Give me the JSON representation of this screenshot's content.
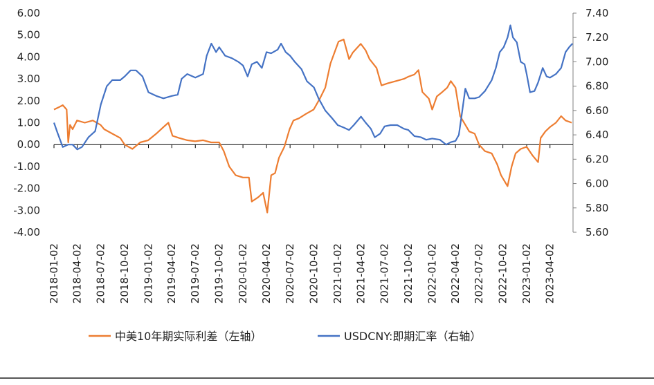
{
  "chart_data": {
    "type": "line",
    "title": "",
    "xlabel": "",
    "ylabel_left": "",
    "ylabel_right": "",
    "y_left_range": [
      -4.0,
      6.0
    ],
    "y_right_range": [
      5.6,
      7.4
    ],
    "y_left_ticks": [
      "6.00",
      "5.00",
      "4.00",
      "3.00",
      "2.00",
      "1.00",
      "0.00",
      "-1.00",
      "-2.00",
      "-3.00",
      "-4.00"
    ],
    "y_right_ticks": [
      "7.40",
      "7.20",
      "7.00",
      "6.80",
      "6.60",
      "6.40",
      "6.20",
      "6.00",
      "5.80",
      "5.60"
    ],
    "x_range": [
      "2018-01-02",
      "2023-06-30"
    ],
    "x_ticks": [
      "2018-01-02",
      "2018-04-02",
      "2018-07-02",
      "2018-10-02",
      "2019-01-02",
      "2019-04-02",
      "2019-07-02",
      "2019-10-02",
      "2020-01-02",
      "2020-04-02",
      "2020-07-02",
      "2020-10-02",
      "2021-01-02",
      "2021-04-02",
      "2021-07-02",
      "2021-10-02",
      "2022-01-02",
      "2022-04-02",
      "2022-07-02",
      "2022-10-02",
      "2023-01-02",
      "2023-04-02"
    ],
    "legend_position": "bottom",
    "grid": false,
    "series": [
      {
        "name": "中美10年期实际利差（左轴）",
        "axis": "left",
        "color": "#ED7D31",
        "points": [
          [
            "2018-01-02",
            1.6
          ],
          [
            "2018-01-20",
            1.7
          ],
          [
            "2018-02-05",
            1.8
          ],
          [
            "2018-02-20",
            1.6
          ],
          [
            "2018-02-26",
            0.1
          ],
          [
            "2018-03-05",
            0.9
          ],
          [
            "2018-03-15",
            0.7
          ],
          [
            "2018-04-01",
            1.1
          ],
          [
            "2018-05-01",
            1.0
          ],
          [
            "2018-06-01",
            1.1
          ],
          [
            "2018-07-01",
            0.9
          ],
          [
            "2018-07-15",
            0.7
          ],
          [
            "2018-08-15",
            0.5
          ],
          [
            "2018-09-15",
            0.3
          ],
          [
            "2018-10-02",
            0.0
          ],
          [
            "2018-11-01",
            -0.2
          ],
          [
            "2018-12-01",
            0.1
          ],
          [
            "2019-01-01",
            0.2
          ],
          [
            "2019-02-01",
            0.5
          ],
          [
            "2019-03-01",
            0.8
          ],
          [
            "2019-03-20",
            1.0
          ],
          [
            "2019-04-05",
            0.4
          ],
          [
            "2019-05-01",
            0.3
          ],
          [
            "2019-06-01",
            0.2
          ],
          [
            "2019-07-01",
            0.15
          ],
          [
            "2019-08-01",
            0.2
          ],
          [
            "2019-09-01",
            0.1
          ],
          [
            "2019-10-02",
            0.1
          ],
          [
            "2019-10-20",
            -0.3
          ],
          [
            "2019-11-10",
            -1.0
          ],
          [
            "2019-12-05",
            -1.4
          ],
          [
            "2020-01-02",
            -1.5
          ],
          [
            "2020-01-25",
            -1.5
          ],
          [
            "2020-02-05",
            -2.6
          ],
          [
            "2020-03-01",
            -2.4
          ],
          [
            "2020-03-20",
            -2.2
          ],
          [
            "2020-04-05",
            -3.1
          ],
          [
            "2020-04-20",
            -1.4
          ],
          [
            "2020-05-05",
            -1.3
          ],
          [
            "2020-05-20",
            -0.6
          ],
          [
            "2020-06-10",
            -0.1
          ],
          [
            "2020-06-30",
            0.7
          ],
          [
            "2020-07-15",
            1.1
          ],
          [
            "2020-08-05",
            1.2
          ],
          [
            "2020-09-01",
            1.4
          ],
          [
            "2020-10-01",
            1.6
          ],
          [
            "2020-10-25",
            2.1
          ],
          [
            "2020-11-15",
            2.6
          ],
          [
            "2020-12-05",
            3.7
          ],
          [
            "2021-01-05",
            4.7
          ],
          [
            "2021-01-25",
            4.8
          ],
          [
            "2021-02-15",
            3.9
          ],
          [
            "2021-03-01",
            4.2
          ],
          [
            "2021-04-01",
            4.6
          ],
          [
            "2021-04-20",
            4.3
          ],
          [
            "2021-05-05",
            3.9
          ],
          [
            "2021-06-01",
            3.5
          ],
          [
            "2021-06-20",
            2.7
          ],
          [
            "2021-07-15",
            2.8
          ],
          [
            "2021-08-15",
            2.9
          ],
          [
            "2021-09-15",
            3.0
          ],
          [
            "2021-10-02",
            3.1
          ],
          [
            "2021-10-25",
            3.2
          ],
          [
            "2021-11-10",
            3.4
          ],
          [
            "2021-11-25",
            2.4
          ],
          [
            "2021-12-20",
            2.1
          ],
          [
            "2022-01-02",
            1.6
          ],
          [
            "2022-01-20",
            2.2
          ],
          [
            "2022-02-10",
            2.4
          ],
          [
            "2022-03-01",
            2.6
          ],
          [
            "2022-03-15",
            2.9
          ],
          [
            "2022-04-02",
            2.6
          ],
          [
            "2022-04-20",
            1.3
          ],
          [
            "2022-05-10",
            0.9
          ],
          [
            "2022-05-25",
            0.6
          ],
          [
            "2022-06-15",
            0.5
          ],
          [
            "2022-07-02",
            0.0
          ],
          [
            "2022-07-25",
            -0.3
          ],
          [
            "2022-08-20",
            -0.4
          ],
          [
            "2022-09-10",
            -0.9
          ],
          [
            "2022-09-25",
            -1.4
          ],
          [
            "2022-10-10",
            -1.7
          ],
          [
            "2022-10-20",
            -1.9
          ],
          [
            "2022-11-05",
            -1.0
          ],
          [
            "2022-11-20",
            -0.4
          ],
          [
            "2022-12-10",
            -0.2
          ],
          [
            "2023-01-02",
            -0.1
          ],
          [
            "2023-01-25",
            -0.5
          ],
          [
            "2023-02-15",
            -0.8
          ],
          [
            "2023-02-25",
            0.3
          ],
          [
            "2023-03-15",
            0.6
          ],
          [
            "2023-04-02",
            0.8
          ],
          [
            "2023-04-25",
            1.0
          ],
          [
            "2023-05-15",
            1.3
          ],
          [
            "2023-06-01",
            1.1
          ],
          [
            "2023-06-25",
            1.0
          ]
        ]
      },
      {
        "name": "USDCNY:即期汇率（右轴）",
        "axis": "right",
        "color": "#4472C4",
        "points": [
          [
            "2018-01-02",
            6.5
          ],
          [
            "2018-01-15",
            6.42
          ],
          [
            "2018-02-05",
            6.3
          ],
          [
            "2018-02-25",
            6.32
          ],
          [
            "2018-03-15",
            6.32
          ],
          [
            "2018-04-02",
            6.28
          ],
          [
            "2018-04-20",
            6.3
          ],
          [
            "2018-05-15",
            6.38
          ],
          [
            "2018-06-10",
            6.43
          ],
          [
            "2018-07-02",
            6.65
          ],
          [
            "2018-07-25",
            6.8
          ],
          [
            "2018-08-15",
            6.85
          ],
          [
            "2018-09-15",
            6.85
          ],
          [
            "2018-10-02",
            6.88
          ],
          [
            "2018-10-25",
            6.93
          ],
          [
            "2018-11-15",
            6.93
          ],
          [
            "2018-12-10",
            6.88
          ],
          [
            "2019-01-02",
            6.75
          ],
          [
            "2019-02-01",
            6.72
          ],
          [
            "2019-03-01",
            6.7
          ],
          [
            "2019-04-02",
            6.72
          ],
          [
            "2019-04-25",
            6.73
          ],
          [
            "2019-05-10",
            6.86
          ],
          [
            "2019-06-01",
            6.9
          ],
          [
            "2019-07-02",
            6.87
          ],
          [
            "2019-08-01",
            6.9
          ],
          [
            "2019-08-15",
            7.05
          ],
          [
            "2019-09-02",
            7.15
          ],
          [
            "2019-09-20",
            7.08
          ],
          [
            "2019-10-02",
            7.12
          ],
          [
            "2019-10-25",
            7.05
          ],
          [
            "2019-11-20",
            7.03
          ],
          [
            "2019-12-15",
            7.0
          ],
          [
            "2020-01-02",
            6.97
          ],
          [
            "2020-01-20",
            6.88
          ],
          [
            "2020-02-05",
            6.98
          ],
          [
            "2020-02-25",
            7.0
          ],
          [
            "2020-03-15",
            6.95
          ],
          [
            "2020-04-02",
            7.08
          ],
          [
            "2020-04-20",
            7.07
          ],
          [
            "2020-05-15",
            7.1
          ],
          [
            "2020-05-28",
            7.15
          ],
          [
            "2020-06-15",
            7.08
          ],
          [
            "2020-07-02",
            7.05
          ],
          [
            "2020-07-20",
            7.0
          ],
          [
            "2020-08-15",
            6.94
          ],
          [
            "2020-09-05",
            6.84
          ],
          [
            "2020-10-02",
            6.79
          ],
          [
            "2020-10-20",
            6.7
          ],
          [
            "2020-11-15",
            6.6
          ],
          [
            "2020-12-10",
            6.54
          ],
          [
            "2021-01-02",
            6.48
          ],
          [
            "2021-01-25",
            6.46
          ],
          [
            "2021-02-15",
            6.44
          ],
          [
            "2021-03-05",
            6.48
          ],
          [
            "2021-04-02",
            6.55
          ],
          [
            "2021-04-20",
            6.5
          ],
          [
            "2021-05-10",
            6.45
          ],
          [
            "2021-05-25",
            6.38
          ],
          [
            "2021-06-15",
            6.41
          ],
          [
            "2021-07-02",
            6.47
          ],
          [
            "2021-07-25",
            6.48
          ],
          [
            "2021-08-20",
            6.48
          ],
          [
            "2021-09-15",
            6.45
          ],
          [
            "2021-10-02",
            6.44
          ],
          [
            "2021-10-25",
            6.39
          ],
          [
            "2021-11-20",
            6.38
          ],
          [
            "2021-12-10",
            6.36
          ],
          [
            "2022-01-02",
            6.37
          ],
          [
            "2022-02-01",
            6.36
          ],
          [
            "2022-02-25",
            6.32
          ],
          [
            "2022-03-15",
            6.34
          ],
          [
            "2022-04-02",
            6.35
          ],
          [
            "2022-04-15",
            6.4
          ],
          [
            "2022-04-25",
            6.55
          ],
          [
            "2022-05-10",
            6.78
          ],
          [
            "2022-05-25",
            6.7
          ],
          [
            "2022-06-15",
            6.7
          ],
          [
            "2022-07-02",
            6.71
          ],
          [
            "2022-07-25",
            6.76
          ],
          [
            "2022-08-20",
            6.85
          ],
          [
            "2022-09-05",
            6.95
          ],
          [
            "2022-09-20",
            7.08
          ],
          [
            "2022-10-05",
            7.12
          ],
          [
            "2022-10-20",
            7.2
          ],
          [
            "2022-10-31",
            7.3
          ],
          [
            "2022-11-10",
            7.2
          ],
          [
            "2022-11-25",
            7.16
          ],
          [
            "2022-12-10",
            7.0
          ],
          [
            "2022-12-25",
            6.98
          ],
          [
            "2023-01-02",
            6.9
          ],
          [
            "2023-01-15",
            6.75
          ],
          [
            "2023-02-01",
            6.76
          ],
          [
            "2023-02-15",
            6.83
          ],
          [
            "2023-03-05",
            6.95
          ],
          [
            "2023-03-20",
            6.88
          ],
          [
            "2023-04-02",
            6.87
          ],
          [
            "2023-04-25",
            6.9
          ],
          [
            "2023-05-15",
            6.95
          ],
          [
            "2023-06-01",
            7.08
          ],
          [
            "2023-06-15",
            7.12
          ],
          [
            "2023-06-28",
            7.15
          ]
        ]
      }
    ]
  }
}
